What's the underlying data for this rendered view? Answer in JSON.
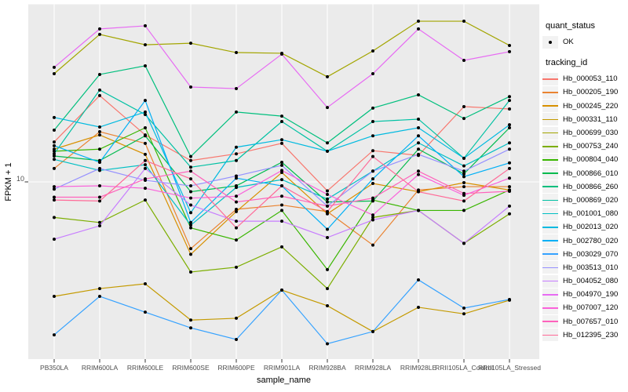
{
  "legend": {
    "quant_status_title": "quant_status",
    "quant_status_value": "OK",
    "tracking_id_title": "tracking_id"
  },
  "chart_data": {
    "type": "line",
    "title": "",
    "xlabel": "sample_name",
    "ylabel": "FPKM + 1",
    "y_scale": "log10",
    "ylim": [
      1,
      100
    ],
    "y_tick_labels": [
      "10"
    ],
    "y_tick_values": [
      10
    ],
    "grid": "white major gridlines on grey panel",
    "legend_position": "right",
    "marker": "black point at every vertex",
    "panel_bg": "#EBEBEB",
    "gridline_color": "#FFFFFF",
    "tick_color": "#333333",
    "axis_text_color": "#4D4D4D",
    "categories": [
      "PB350LA",
      "RRIM600LA",
      "RRIM600LE",
      "RRIM600SE",
      "RRIM600PE",
      "RRIM901LA",
      "RRIM928BA",
      "RRIM928LA",
      "RRIM928LE",
      "RRII105LA_Control",
      "RRII105LA_Stressed"
    ],
    "series": [
      {
        "name": "Hb_000053_110",
        "color": "#F8766D",
        "values": [
          16.8,
          30.7,
          18.4,
          13.2,
          14.4,
          16.5,
          8.9,
          15.0,
          14.1,
          26.6,
          25.8
        ]
      },
      {
        "name": "Hb_000205_190",
        "color": "#EA8331",
        "values": [
          11.9,
          19.2,
          16.5,
          4.2,
          7.0,
          7.4,
          6.8,
          4.4,
          9.0,
          9.4,
          9.4
        ]
      },
      {
        "name": "Hb_000245_220",
        "color": "#D89000",
        "values": [
          15.3,
          18.4,
          14.3,
          3.9,
          6.8,
          11.3,
          6.6,
          9.8,
          8.8,
          9.9,
          9.0
        ]
      },
      {
        "name": "Hb_000331_110",
        "color": "#C49A00",
        "values": [
          2.26,
          2.5,
          2.66,
          1.66,
          1.7,
          2.45,
          2.0,
          1.43,
          1.96,
          1.8,
          2.15
        ]
      },
      {
        "name": "Hb_000699_030",
        "color": "#A3A500",
        "values": [
          40.8,
          68.0,
          59.4,
          60.6,
          53.7,
          53.2,
          39.2,
          54.8,
          80.7,
          80.7,
          58.9
        ]
      },
      {
        "name": "Hb_000753_240",
        "color": "#7CAE00",
        "values": [
          6.3,
          5.9,
          7.9,
          3.1,
          3.3,
          4.3,
          2.5,
          6.3,
          6.9,
          4.5,
          6.6
        ]
      },
      {
        "name": "Hb_000804_040",
        "color": "#39B600",
        "values": [
          14.9,
          15.3,
          20.2,
          5.5,
          4.7,
          6.9,
          3.2,
          7.9,
          6.9,
          6.9,
          9.0
        ]
      },
      {
        "name": "Hb_000866_010",
        "color": "#00BB4E",
        "values": [
          14.0,
          13.2,
          18.2,
          8.8,
          9.5,
          12.9,
          7.7,
          7.8,
          15.3,
          11.1,
          20.2
        ]
      },
      {
        "name": "Hb_000866_260",
        "color": "#00BF7D",
        "values": [
          19.6,
          40.4,
          45.2,
          13.9,
          24.8,
          23.5,
          16.6,
          26.1,
          31.0,
          22.8,
          30.3
        ]
      },
      {
        "name": "Hb_000869_020",
        "color": "#00C1A3",
        "values": [
          14.4,
          33.0,
          24.0,
          12.1,
          13.2,
          21.9,
          14.9,
          21.9,
          22.6,
          13.6,
          28.8
        ]
      },
      {
        "name": "Hb_001001_080",
        "color": "#00BFC4",
        "values": [
          13.4,
          11.6,
          12.5,
          5.7,
          9.3,
          10.3,
          8.0,
          11.5,
          16.6,
          12.3,
          16.6
        ]
      },
      {
        "name": "Hb_002013_020",
        "color": "#00BAE0",
        "values": [
          23.1,
          20.4,
          24.8,
          6.7,
          15.7,
          17.3,
          14.9,
          18.2,
          20.2,
          13.6,
          21.0
        ]
      },
      {
        "name": "Hb_002780_020",
        "color": "#00B0F6",
        "values": [
          16.0,
          12.9,
          28.8,
          5.9,
          10.5,
          9.5,
          5.4,
          10.4,
          18.2,
          10.7,
          12.8
        ]
      },
      {
        "name": "Hb_003029_070",
        "color": "#35A2FF",
        "values": [
          1.37,
          2.26,
          1.84,
          1.5,
          1.29,
          2.45,
          1.22,
          1.43,
          2.8,
          1.94,
          2.17
        ]
      },
      {
        "name": "Hb_003513_010",
        "color": "#9590FF",
        "values": [
          9.1,
          11.9,
          10.2,
          9.5,
          10.8,
          12.4,
          7.3,
          11.5,
          14.3,
          11.5,
          15.3
        ]
      },
      {
        "name": "Hb_004052_080",
        "color": "#C77CFF",
        "values": [
          4.75,
          5.65,
          11.9,
          7.4,
          6.0,
          6.0,
          4.85,
          6.1,
          6.9,
          4.5,
          7.3
        ]
      },
      {
        "name": "Hb_004970_190",
        "color": "#E76BF3",
        "values": [
          44.3,
          73.0,
          76.0,
          34.3,
          33.6,
          52.6,
          26.3,
          40.8,
          73.0,
          48.5,
          54.3
        ]
      },
      {
        "name": "Hb_007007_120",
        "color": "#FA62DB",
        "values": [
          9.4,
          9.5,
          9.2,
          8.1,
          8.3,
          11.6,
          8.5,
          6.5,
          11.0,
          8.4,
          10.5
        ]
      },
      {
        "name": "Hb_007657_010",
        "color": "#FF62BC",
        "values": [
          8.2,
          8.2,
          10.4,
          11.5,
          7.7,
          8.3,
          7.3,
          8.1,
          11.5,
          8.6,
          8.85
        ]
      },
      {
        "name": "Hb_012395_230",
        "color": "#FF6A98",
        "values": [
          7.9,
          7.8,
          13.2,
          10.4,
          5.5,
          9.5,
          6.8,
          13.9,
          8.8,
          7.8,
          11.9
        ]
      }
    ]
  }
}
